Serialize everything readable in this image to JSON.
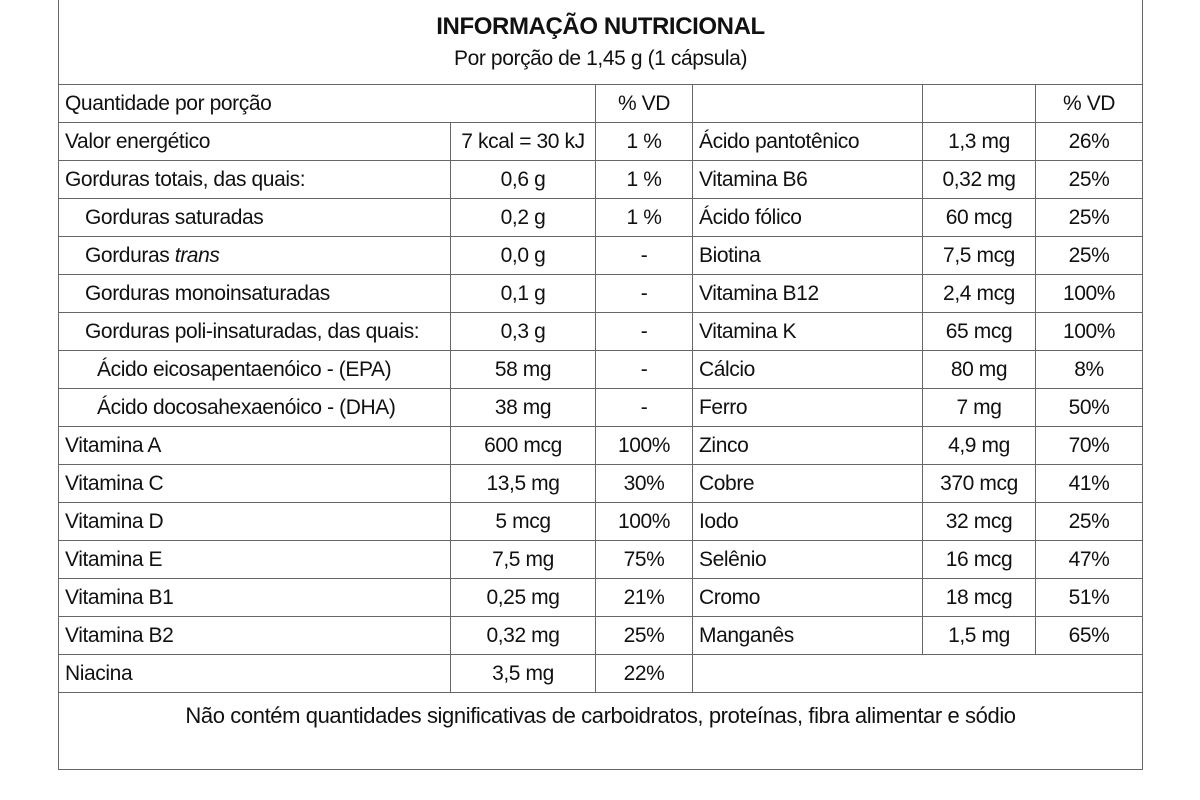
{
  "header": {
    "title": "INFORMAÇÃO NUTRICIONAL",
    "subtitle": "Por porção de 1,45 g (1 cápsula)"
  },
  "table": {
    "columns": [
      "Quantidade por porção",
      "% VD",
      "% VD"
    ],
    "left_rows": [
      {
        "label": "Valor energético",
        "level": 0,
        "amount": "7 kcal = 30 kJ",
        "dv": "1 %"
      },
      {
        "label": "Gorduras totais, das quais:",
        "level": 0,
        "amount": "0,6 g",
        "dv": "1 %"
      },
      {
        "label": "Gorduras saturadas",
        "level": 1,
        "amount": "0,2 g",
        "dv": "1 %"
      },
      {
        "label": "Gorduras",
        "emphasis": "trans",
        "level": 1,
        "amount": "0,0 g",
        "dv": "-"
      },
      {
        "label": "Gorduras monoinsaturadas",
        "level": 1,
        "amount": "0,1 g",
        "dv": "-"
      },
      {
        "label": "Gorduras poli-insaturadas, das quais:",
        "level": 1,
        "amount": "0,3 g",
        "dv": "-"
      },
      {
        "label": "Ácido eicosapentaenóico - (EPA)",
        "level": 2,
        "amount": "58 mg",
        "dv": "-"
      },
      {
        "label": "Ácido docosahexaenóico - (DHA)",
        "level": 2,
        "amount": "38 mg",
        "dv": "-"
      },
      {
        "label": "Vitamina A",
        "level": 0,
        "amount": "600 mcg",
        "dv": "100%"
      },
      {
        "label": "Vitamina C",
        "level": 0,
        "amount": "13,5 mg",
        "dv": "30%"
      },
      {
        "label": "Vitamina D",
        "level": 0,
        "amount": "5 mcg",
        "dv": "100%"
      },
      {
        "label": "Vitamina E",
        "level": 0,
        "amount": "7,5 mg",
        "dv": "75%"
      },
      {
        "label": "Vitamina B1",
        "level": 0,
        "amount": "0,25 mg",
        "dv": "21%"
      },
      {
        "label": "Vitamina B2",
        "level": 0,
        "amount": "0,32 mg",
        "dv": "25%"
      },
      {
        "label": "Niacina",
        "level": 0,
        "amount": "3,5 mg",
        "dv": "22%"
      }
    ],
    "right_rows": [
      {
        "label": "Ácido pantotênico",
        "amount": "1,3 mg",
        "dv": "26%"
      },
      {
        "label": "Vitamina B6",
        "amount": "0,32 mg",
        "dv": "25%"
      },
      {
        "label": "Ácido fólico",
        "amount": "60 mcg",
        "dv": "25%"
      },
      {
        "label": "Biotina",
        "amount": "7,5 mcg",
        "dv": "25%"
      },
      {
        "label": "Vitamina B12",
        "amount": "2,4 mcg",
        "dv": "100%"
      },
      {
        "label": "Vitamina K",
        "amount": "65 mcg",
        "dv": "100%"
      },
      {
        "label": "Cálcio",
        "amount": "80 mg",
        "dv": "8%"
      },
      {
        "label": "Ferro",
        "amount": "7 mg",
        "dv": "50%"
      },
      {
        "label": "Zinco",
        "amount": "4,9 mg",
        "dv": "70%"
      },
      {
        "label": "Cobre",
        "amount": "370 mcg",
        "dv": "41%"
      },
      {
        "label": "Iodo",
        "amount": "32 mcg",
        "dv": "25%"
      },
      {
        "label": "Selênio",
        "amount": "16 mcg",
        "dv": "47%"
      },
      {
        "label": "Cromo",
        "amount": "18 mcg",
        "dv": "51%"
      },
      {
        "label": "Manganês",
        "amount": "1,5 mg",
        "dv": "65%"
      }
    ]
  },
  "footer": "Não contém quantidades significativas de carboidratos, proteínas, fibra alimentar e sódio"
}
